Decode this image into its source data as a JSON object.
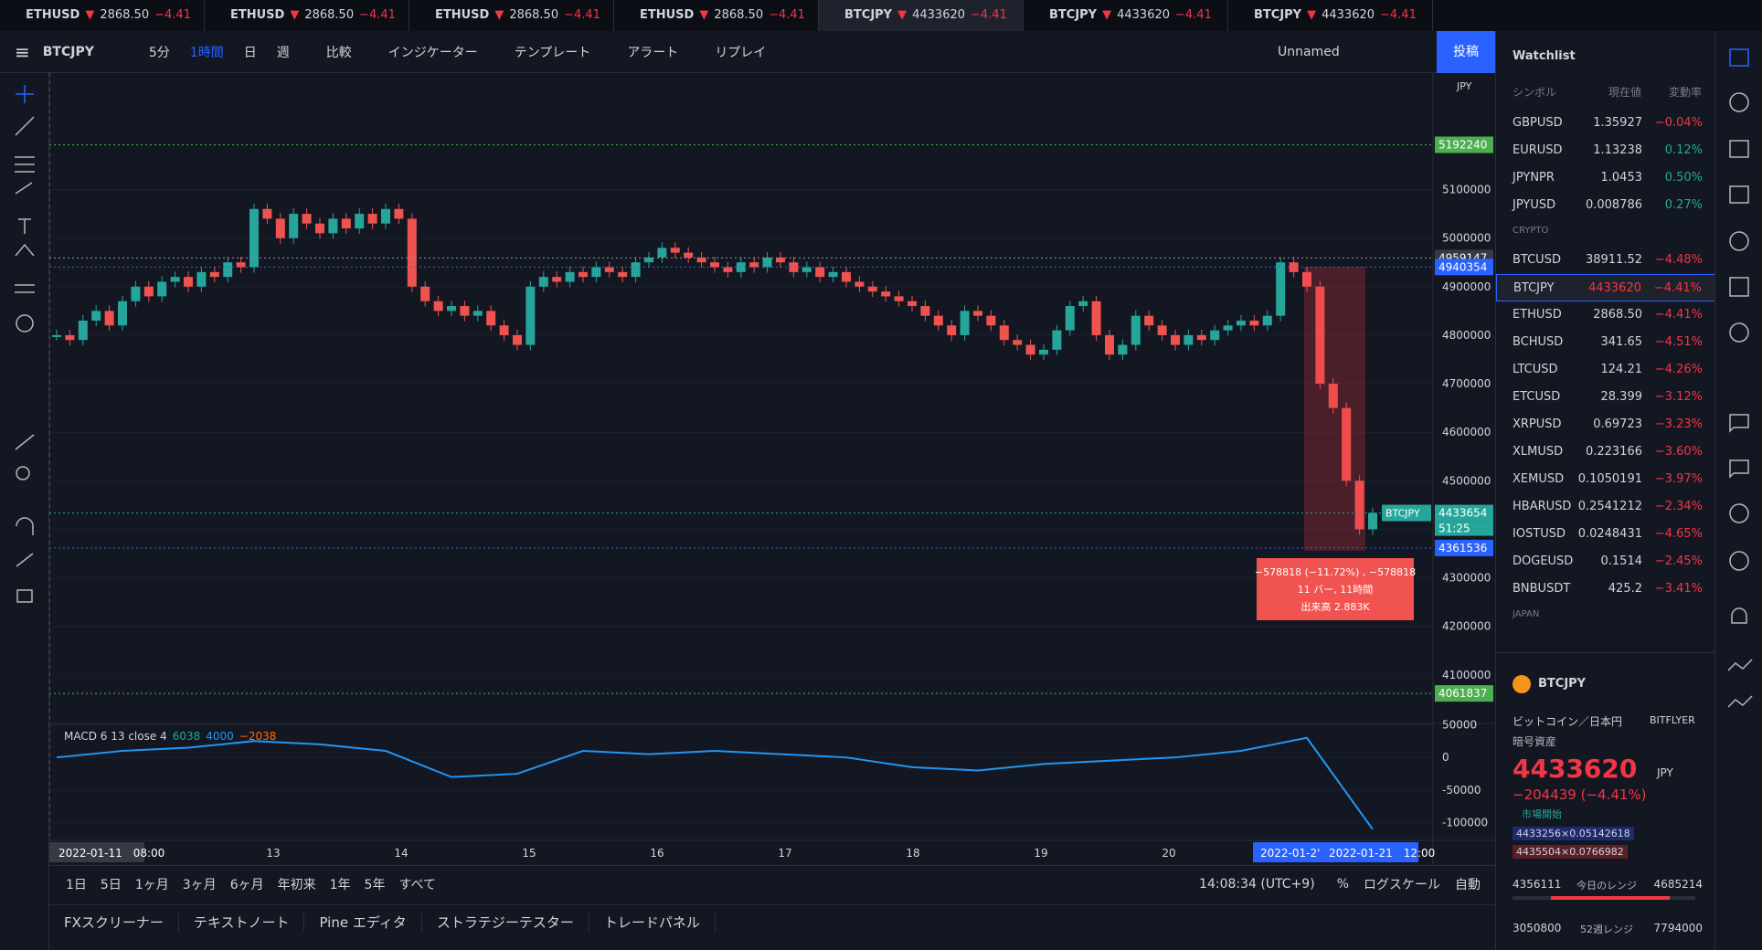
{
  "tabs": [
    {
      "symbol": "ETHUSD",
      "price": "2868.50",
      "change": "−4.41"
    },
    {
      "symbol": "ETHUSD",
      "price": "2868.50",
      "change": "−4.41"
    },
    {
      "symbol": "ETHUSD",
      "price": "2868.50",
      "change": "−4.41"
    },
    {
      "symbol": "ETHUSD",
      "price": "2868.50",
      "change": "−4.41"
    },
    {
      "symbol": "BTCJPY",
      "price": "4433620",
      "change": "−4.41"
    },
    {
      "symbol": "BTCJPY",
      "price": "4433620",
      "change": "−4.41"
    },
    {
      "symbol": "BTCJPY",
      "price": "4433620",
      "change": "−4.41"
    }
  ],
  "toolbar": {
    "symbol": "BTCJPY",
    "intervals": [
      "5分",
      "1時間",
      "日",
      "週"
    ],
    "items": [
      "比較",
      "インジケーター",
      "テンプレート",
      "アラート",
      "リプレイ"
    ],
    "layout": "Unnamed",
    "publish": "投稿"
  },
  "chart": {
    "ylim": [
      4000000,
      5340000
    ],
    "yticks": [
      4100000,
      4200000,
      4300000,
      4400000,
      4500000,
      4600000,
      4700000,
      4800000,
      4900000,
      5000000,
      5100000
    ],
    "currency": "JPY",
    "closes": [
      4800000,
      4790000,
      4830000,
      4850000,
      4820000,
      4870000,
      4900000,
      4880000,
      4910000,
      4920000,
      4900000,
      4930000,
      4920000,
      4950000,
      4940000,
      5060000,
      5040000,
      5000000,
      5050000,
      5030000,
      5010000,
      5040000,
      5020000,
      5050000,
      5030000,
      5060000,
      5040000,
      4900000,
      4870000,
      4850000,
      4860000,
      4840000,
      4850000,
      4820000,
      4800000,
      4780000,
      4900000,
      4920000,
      4910000,
      4930000,
      4920000,
      4940000,
      4930000,
      4920000,
      4950000,
      4960000,
      4980000,
      4970000,
      4960000,
      4950000,
      4940000,
      4930000,
      4950000,
      4940000,
      4960000,
      4950000,
      4930000,
      4940000,
      4920000,
      4930000,
      4910000,
      4900000,
      4890000,
      4880000,
      4870000,
      4860000,
      4840000,
      4820000,
      4800000,
      4850000,
      4840000,
      4820000,
      4790000,
      4780000,
      4760000,
      4770000,
      4810000,
      4860000,
      4870000,
      4800000,
      4760000,
      4780000,
      4840000,
      4820000,
      4800000,
      4780000,
      4800000,
      4790000,
      4810000,
      4820000,
      4830000,
      4820000,
      4840000,
      4950000,
      4930000,
      4900000,
      4700000,
      4650000,
      4500000,
      4400000,
      4433654
    ],
    "price_lines": [
      {
        "value": 5192240,
        "color": "#4caf50"
      },
      {
        "value": 4959147,
        "color": "#363a45"
      },
      {
        "value": 4940354,
        "color": "#2962ff"
      },
      {
        "value": 4433654,
        "color": "#26a69a"
      },
      {
        "value": 4361536,
        "color": "#2962ff"
      },
      {
        "value": 4061837,
        "color": "#4caf50"
      }
    ],
    "countdown": "51:25",
    "symbol_tag": "BTCJPY",
    "time_start": "2022-01-11　08:00",
    "days": [
      "13",
      "14",
      "15",
      "16",
      "17",
      "18",
      "19",
      "20"
    ],
    "time_end": [
      "2022-01-2'",
      "2022-01-21　12:00"
    ],
    "tooltip": [
      "−578818 (−11.72%) , −578818",
      "11 バー, 11時間",
      "出来高 2.883K"
    ],
    "macd": {
      "legend": "MACD 6 13 close 4",
      "legend_values": [
        "6038",
        "4000",
        "−2038"
      ],
      "ylim": [
        -127000,
        52000
      ],
      "yticks": [
        50000,
        0,
        -50000,
        -100000
      ],
      "line": [
        0,
        10000,
        15000,
        25000,
        20000,
        10000,
        -30000,
        -25000,
        10000,
        5000,
        10000,
        5000,
        0,
        -15000,
        -20000,
        -10000,
        -5000,
        0,
        10000,
        30000,
        -110000
      ]
    }
  },
  "ranges": [
    "1日",
    "5日",
    "1ヶ月",
    "3ヶ月",
    "6ヶ月",
    "年初来",
    "1年",
    "5年",
    "すべて"
  ],
  "status": {
    "time": "14:08:34 (UTC+9)",
    "percent": "%",
    "log": "ログスケール",
    "auto": "自動"
  },
  "panels": [
    "FXスクリーナー",
    "テキストノート",
    "Pine エディタ",
    "ストラテジーテスター",
    "トレードパネル"
  ],
  "watchlist": {
    "title": "Watchlist",
    "columns": [
      "シンボル",
      "現在値",
      "変動率"
    ],
    "rows": [
      [
        "GBPUSD",
        "1.35927",
        "−0.04%"
      ],
      [
        "EURUSD",
        "1.13238",
        "0.12%"
      ],
      [
        "JPYNPR",
        "1.0453",
        "0.50%"
      ],
      [
        "JPYUSD",
        "0.008786",
        "0.27%"
      ],
      [
        "CRYPTO"
      ],
      [
        "BTCUSD",
        "38911.52",
        "−4.48%"
      ],
      [
        "BTCJPY",
        "4433620",
        "−4.41%"
      ],
      [
        "ETHUSD",
        "2868.50",
        "−4.41%"
      ],
      [
        "BCHUSD",
        "341.65",
        "−4.51%"
      ],
      [
        "LTCUSD",
        "124.21",
        "−4.26%"
      ],
      [
        "ETCUSD",
        "28.399",
        "−3.12%"
      ],
      [
        "XRPUSD",
        "0.69723",
        "−3.23%"
      ],
      [
        "XLMUSD",
        "0.223166",
        "−3.60%"
      ],
      [
        "XEMUSD",
        "0.1050191",
        "−3.97%"
      ],
      [
        "HBARUSD",
        "0.2541212",
        "−2.34%"
      ],
      [
        "IOSTUSD",
        "0.0248431",
        "−4.65%"
      ],
      [
        "DOGEUSD",
        "0.1514",
        "−2.45%"
      ],
      [
        "BNBUSDT",
        "425.2",
        "−3.41%"
      ],
      [
        "JAPAN"
      ]
    ]
  },
  "detail": {
    "symbol": "BTCJPY",
    "name": "ビットコイン／日本円",
    "exchange": "BITFLYER",
    "category": "暗号資産",
    "price": "4433620",
    "currency": "JPY",
    "change": "−204439 (−4.41%)",
    "market": "市場開始",
    "bid": "4433256×0.05142618",
    "ask": "4435504×0.0766982",
    "day_low": "4356111",
    "day_label": "今日のレンジ",
    "day_high": "4685214",
    "year_low": "3050800",
    "year_label": "52週レンジ",
    "year_high": "7794000"
  }
}
